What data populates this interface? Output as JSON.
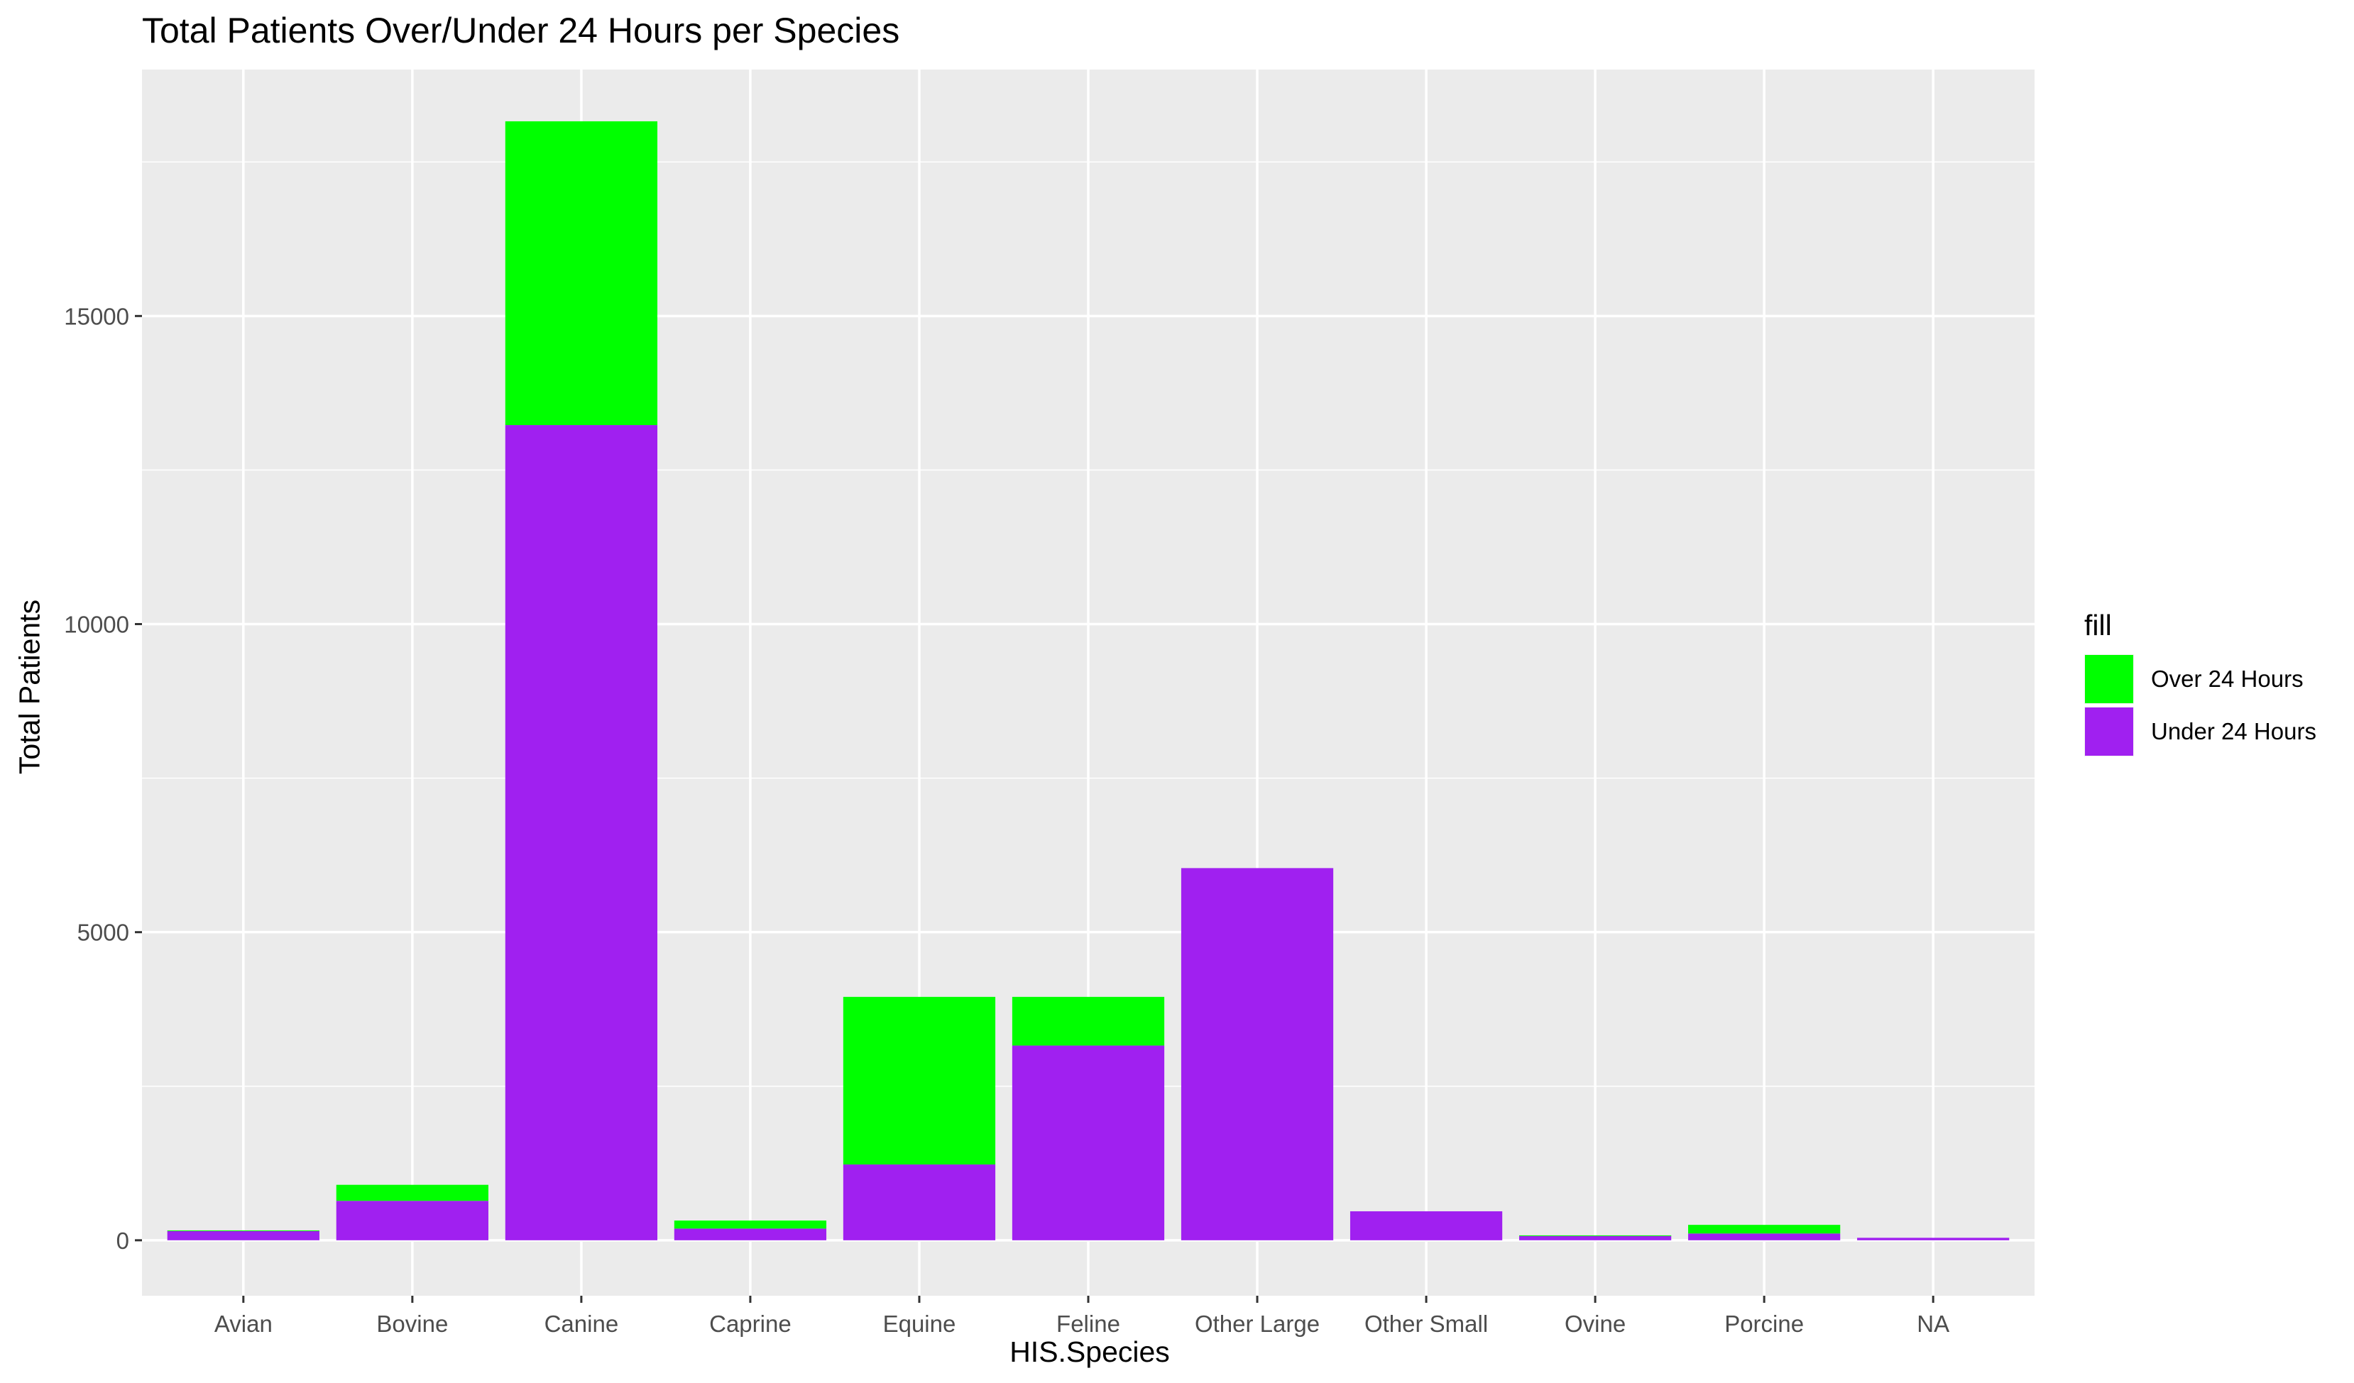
{
  "chart_data": {
    "type": "bar",
    "stacked": true,
    "title": "Total Patients Over/Under 24 Hours per Species",
    "xlabel": "HIS.Species",
    "ylabel": "Total Patients",
    "categories": [
      "Avian",
      "Bovine",
      "Canine",
      "Caprine",
      "Equine",
      "Feline",
      "Other Large",
      "Other Small",
      "Ovine",
      "Porcine",
      "NA"
    ],
    "series": [
      {
        "name": "Under 24 Hours",
        "color": "#A020F0",
        "values": [
          150,
          640,
          13230,
          190,
          1230,
          3160,
          6040,
          470,
          70,
          110,
          40
        ]
      },
      {
        "name": "Over 24 Hours",
        "color": "#00FF00",
        "values": [
          10,
          260,
          4930,
          130,
          2720,
          790,
          0,
          0,
          10,
          140,
          0
        ]
      }
    ],
    "ylim": [
      -900,
      19000
    ],
    "yticks": [
      0,
      5000,
      10000,
      15000
    ],
    "ytick_labels": [
      "0",
      "5000",
      "10000",
      "15000"
    ],
    "grid": true,
    "panel_background": "#EBEBEB",
    "legend": {
      "title": "fill",
      "position": "right",
      "items": [
        {
          "label": "Over 24 Hours",
          "color": "#00FF00"
        },
        {
          "label": "Under 24 Hours",
          "color": "#A020F0"
        }
      ]
    }
  }
}
